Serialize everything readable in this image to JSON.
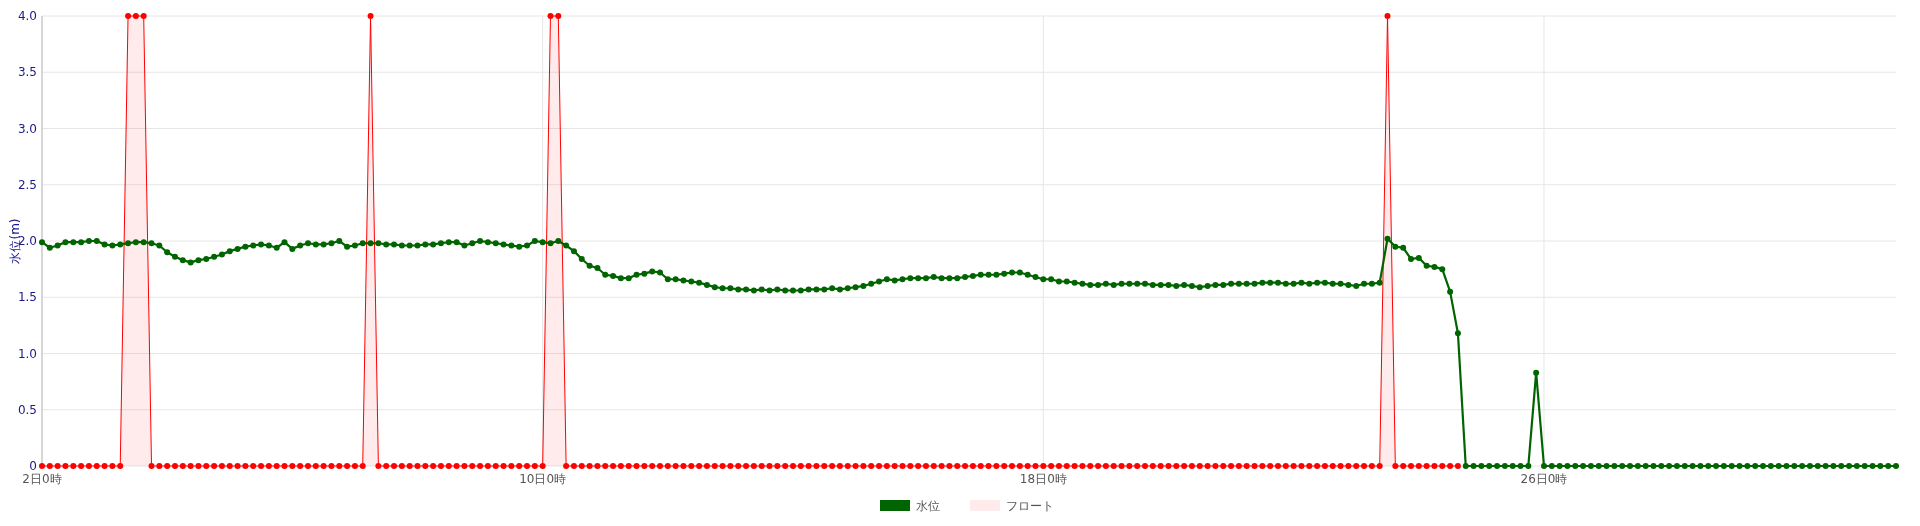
{
  "chart_data": {
    "type": "line",
    "ylabel": "水位(m)",
    "ylim": [
      0,
      4
    ],
    "yticks": [
      {
        "value": 0,
        "label": "0"
      },
      {
        "value": 0.5,
        "label": "0.5"
      },
      {
        "value": 1,
        "label": "1.0"
      },
      {
        "value": 1.5,
        "label": "1.5"
      },
      {
        "value": 2,
        "label": "2.0"
      },
      {
        "value": 2.5,
        "label": "2.5"
      },
      {
        "value": 3,
        "label": "3.0"
      },
      {
        "value": 3.5,
        "label": "3.5"
      },
      {
        "value": 4,
        "label": "4.0"
      }
    ],
    "grid": true,
    "legend": "bottom",
    "marker": "circle",
    "categories": [
      "2日0時",
      null,
      null,
      null,
      null,
      null,
      null,
      null,
      null,
      null,
      null,
      null,
      null,
      null,
      null,
      null,
      null,
      null,
      null,
      null,
      null,
      null,
      null,
      null,
      null,
      null,
      null,
      null,
      null,
      null,
      null,
      null,
      null,
      null,
      null,
      null,
      null,
      null,
      null,
      null,
      null,
      null,
      null,
      null,
      null,
      null,
      null,
      null,
      null,
      null,
      null,
      null,
      null,
      null,
      null,
      null,
      null,
      null,
      null,
      null,
      null,
      null,
      null,
      null,
      "10日0時",
      null,
      null,
      null,
      null,
      null,
      null,
      null,
      null,
      null,
      null,
      null,
      null,
      null,
      null,
      null,
      null,
      null,
      null,
      null,
      null,
      null,
      null,
      null,
      null,
      null,
      null,
      null,
      null,
      null,
      null,
      null,
      null,
      null,
      null,
      null,
      null,
      null,
      null,
      null,
      null,
      null,
      null,
      null,
      null,
      null,
      null,
      null,
      null,
      null,
      null,
      null,
      null,
      null,
      null,
      null,
      null,
      null,
      null,
      null,
      null,
      null,
      null,
      null,
      "18日0時",
      null,
      null,
      null,
      null,
      null,
      null,
      null,
      null,
      null,
      null,
      null,
      null,
      null,
      null,
      null,
      null,
      null,
      null,
      null,
      null,
      null,
      null,
      null,
      null,
      null,
      null,
      null,
      null,
      null,
      null,
      null,
      null,
      null,
      null,
      null,
      null,
      null,
      null,
      null,
      null,
      null,
      null,
      null,
      null,
      null,
      null,
      null,
      null,
      null,
      null,
      null,
      null,
      null,
      null,
      null,
      null,
      null,
      null,
      null,
      null,
      null,
      null,
      null,
      "26日0時",
      null,
      null,
      null,
      null,
      null,
      null,
      null,
      null,
      null,
      null,
      null,
      null,
      null,
      null,
      null,
      null,
      null,
      null,
      null,
      null,
      null,
      null,
      null,
      null,
      null,
      null,
      null,
      null,
      null,
      null,
      null,
      null,
      null,
      null,
      null,
      null,
      null,
      null,
      null,
      null,
      null,
      null,
      null,
      null,
      null
    ],
    "series": [
      {
        "name": "フロート",
        "type": "area",
        "color": "#ff0000",
        "values": [
          0,
          0,
          0,
          0,
          0,
          0,
          0,
          0,
          0,
          0,
          0,
          4,
          4,
          4,
          0,
          0,
          0,
          0,
          0,
          0,
          0,
          0,
          0,
          0,
          0,
          0,
          0,
          0,
          0,
          0,
          0,
          0,
          0,
          0,
          0,
          0,
          0,
          0,
          0,
          0,
          0,
          0,
          4,
          0,
          0,
          0,
          0,
          0,
          0,
          0,
          0,
          0,
          0,
          0,
          0,
          0,
          0,
          0,
          0,
          0,
          0,
          0,
          0,
          0,
          0,
          4,
          4,
          0,
          0,
          0,
          0,
          0,
          0,
          0,
          0,
          0,
          0,
          0,
          0,
          0,
          0,
          0,
          0,
          0,
          0,
          0,
          0,
          0,
          0,
          0,
          0,
          0,
          0,
          0,
          0,
          0,
          0,
          0,
          0,
          0,
          0,
          0,
          0,
          0,
          0,
          0,
          0,
          0,
          0,
          0,
          0,
          0,
          0,
          0,
          0,
          0,
          0,
          0,
          0,
          0,
          0,
          0,
          0,
          0,
          0,
          0,
          0,
          0,
          0,
          0,
          0,
          0,
          0,
          0,
          0,
          0,
          0,
          0,
          0,
          0,
          0,
          0,
          0,
          0,
          0,
          0,
          0,
          0,
          0,
          0,
          0,
          0,
          0,
          0,
          0,
          0,
          0,
          0,
          0,
          0,
          0,
          0,
          0,
          0,
          0,
          0,
          0,
          0,
          0,
          0,
          0,
          0,
          4,
          0,
          0,
          0,
          0,
          0,
          0,
          0,
          0,
          0,
          null,
          null,
          null,
          null,
          null,
          null,
          null,
          null,
          null,
          null,
          null,
          null,
          null,
          null,
          null,
          null,
          null,
          null,
          null,
          null,
          null,
          null,
          null,
          null,
          null,
          null,
          null,
          null,
          null,
          null,
          null,
          null,
          null,
          null,
          null,
          null,
          null,
          null,
          null,
          null,
          null,
          null,
          null,
          null,
          null,
          null,
          null,
          null,
          null,
          null,
          null,
          null,
          null,
          null,
          null,
          null
        ]
      },
      {
        "name": "水位",
        "color": "#006400",
        "values": [
          1.99,
          1.94,
          1.96,
          1.99,
          1.99,
          1.99,
          2.0,
          2.0,
          1.97,
          1.96,
          1.97,
          1.98,
          1.99,
          1.99,
          1.98,
          1.96,
          1.9,
          1.86,
          1.83,
          1.81,
          1.83,
          1.84,
          1.86,
          1.88,
          1.91,
          1.93,
          1.95,
          1.96,
          1.97,
          1.96,
          1.94,
          1.99,
          1.93,
          1.96,
          1.98,
          1.97,
          1.97,
          1.98,
          2.0,
          1.95,
          1.96,
          1.98,
          1.98,
          1.98,
          1.97,
          1.97,
          1.96,
          1.96,
          1.96,
          1.97,
          1.97,
          1.98,
          1.99,
          1.99,
          1.96,
          1.98,
          2.0,
          1.99,
          1.98,
          1.97,
          1.96,
          1.95,
          1.96,
          2.0,
          1.99,
          1.98,
          2.0,
          1.96,
          1.91,
          1.84,
          1.78,
          1.76,
          1.7,
          1.69,
          1.67,
          1.67,
          1.7,
          1.71,
          1.73,
          1.72,
          1.66,
          1.66,
          1.65,
          1.64,
          1.63,
          1.61,
          1.59,
          1.58,
          1.58,
          1.57,
          1.57,
          1.56,
          1.57,
          1.56,
          1.57,
          1.56,
          1.56,
          1.56,
          1.57,
          1.57,
          1.57,
          1.58,
          1.57,
          1.58,
          1.59,
          1.6,
          1.62,
          1.64,
          1.66,
          1.65,
          1.66,
          1.67,
          1.67,
          1.67,
          1.68,
          1.67,
          1.67,
          1.67,
          1.68,
          1.69,
          1.7,
          1.7,
          1.7,
          1.71,
          1.72,
          1.72,
          1.7,
          1.68,
          1.66,
          1.66,
          1.64,
          1.64,
          1.63,
          1.62,
          1.61,
          1.61,
          1.62,
          1.61,
          1.62,
          1.62,
          1.62,
          1.62,
          1.61,
          1.61,
          1.61,
          1.6,
          1.61,
          1.6,
          1.59,
          1.6,
          1.61,
          1.61,
          1.62,
          1.62,
          1.62,
          1.62,
          1.63,
          1.63,
          1.63,
          1.62,
          1.62,
          1.63,
          1.62,
          1.63,
          1.63,
          1.62,
          1.62,
          1.61,
          1.6,
          1.62,
          1.62,
          1.63,
          2.02,
          1.95,
          1.94,
          1.84,
          1.85,
          1.78,
          1.77,
          1.75,
          1.55,
          1.18,
          0,
          0,
          0,
          0,
          0,
          0,
          0,
          0,
          0,
          0.83,
          0,
          0,
          0,
          0,
          0,
          0,
          0,
          0,
          0,
          0,
          0,
          0,
          0,
          0,
          0,
          0,
          0,
          0,
          0,
          0,
          0,
          0,
          0,
          0,
          0,
          0,
          0,
          0,
          0,
          0,
          0,
          0,
          0,
          0,
          0,
          0,
          0,
          0,
          0,
          0,
          0,
          0,
          0,
          0,
          0,
          0
        ]
      }
    ]
  }
}
